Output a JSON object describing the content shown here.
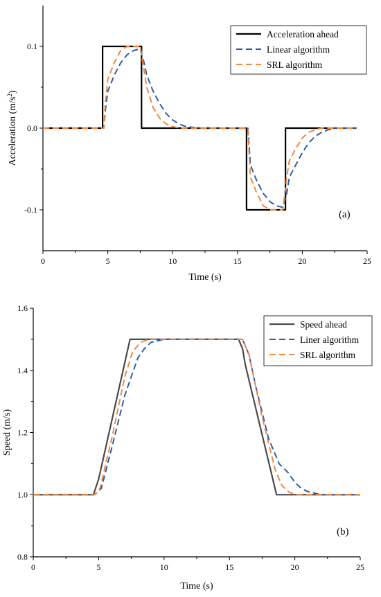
{
  "chart_data": [
    {
      "type": "line",
      "panel": "(a)",
      "xlabel": "Time (s)",
      "ylabel_text": "Acceleration (m/s",
      "ylabel_sup": "2",
      "ylabel_tail": ")",
      "xlim": [
        0,
        25
      ],
      "ylim": [
        -0.15,
        0.15
      ],
      "xticks": [
        0,
        5,
        10,
        15,
        20,
        25
      ],
      "xtick_labels": [
        "0",
        "5",
        "10",
        "15",
        "20",
        "25"
      ],
      "yticks": [
        -0.1,
        0.0,
        0.1
      ],
      "ytick_labels": [
        "-0.1",
        "0.0",
        "0.1"
      ],
      "grid": false,
      "legend_position": "top-right",
      "series": [
        {
          "name": "Acceleration ahead",
          "color": "#000000",
          "dash": "solid",
          "x": [
            0,
            4.6,
            4.6,
            7.6,
            7.6,
            15.7,
            15.7,
            18.7,
            18.7,
            24.2
          ],
          "y": [
            0,
            0,
            0.1,
            0.1,
            0,
            0,
            -0.1,
            -0.1,
            0,
            0
          ]
        },
        {
          "name": "Linear algorithm",
          "color": "#2e5da6",
          "dash": "dashed",
          "x": [
            0,
            4.7,
            4.8,
            5.0,
            5.5,
            6.0,
            6.5,
            7.0,
            7.5,
            7.8,
            8.0,
            8.5,
            9.0,
            9.5,
            10.0,
            10.5,
            11.0,
            11.5,
            12.0,
            15.8,
            15.9,
            16.0,
            16.5,
            17.0,
            17.5,
            18.0,
            18.5,
            18.8,
            19.0,
            19.5,
            20.0,
            20.5,
            21.0,
            21.5,
            22.0,
            22.5,
            24.2
          ],
          "y": [
            0,
            0,
            0.02,
            0.045,
            0.065,
            0.08,
            0.09,
            0.095,
            0.097,
            0.08,
            0.065,
            0.045,
            0.03,
            0.018,
            0.01,
            0.005,
            0.002,
            0.001,
            0,
            0,
            -0.02,
            -0.045,
            -0.065,
            -0.08,
            -0.09,
            -0.095,
            -0.097,
            -0.08,
            -0.06,
            -0.045,
            -0.03,
            -0.018,
            -0.01,
            -0.005,
            -0.002,
            0,
            0
          ]
        },
        {
          "name": "SRL algorithm",
          "color": "#f0883e",
          "dash": "dashed",
          "x": [
            0,
            4.7,
            4.8,
            5.0,
            5.5,
            6.0,
            6.5,
            7.0,
            7.5,
            7.7,
            8.0,
            8.5,
            9.0,
            9.5,
            10.0,
            10.5,
            15.8,
            15.9,
            16.0,
            16.5,
            17.0,
            17.5,
            18.0,
            18.5,
            18.8,
            19.0,
            19.5,
            20.0,
            20.5,
            21.0,
            21.5,
            24.2
          ],
          "y": [
            0,
            0,
            0.03,
            0.06,
            0.08,
            0.095,
            0.1,
            0.1,
            0.1,
            0.08,
            0.05,
            0.025,
            0.012,
            0.005,
            0.002,
            0,
            0,
            -0.03,
            -0.06,
            -0.08,
            -0.095,
            -0.1,
            -0.1,
            -0.1,
            -0.06,
            -0.04,
            -0.025,
            -0.012,
            -0.005,
            -0.002,
            0,
            0
          ]
        }
      ]
    },
    {
      "type": "line",
      "panel": "(b)",
      "xlabel": "Time (s)",
      "ylabel_text": "Speed (m/s)",
      "ylabel_sup": "",
      "ylabel_tail": "",
      "xlim": [
        0,
        25
      ],
      "ylim": [
        0.8,
        1.6
      ],
      "xticks": [
        0,
        5,
        10,
        15,
        20,
        25
      ],
      "xtick_labels": [
        "0",
        "5",
        "10",
        "15",
        "20",
        "25"
      ],
      "yticks": [
        0.8,
        1.0,
        1.2,
        1.4,
        1.6
      ],
      "ytick_labels": [
        "0.8",
        "1.0",
        "1.2",
        "1.4",
        "1.6"
      ],
      "grid": false,
      "legend_position": "top-right",
      "series": [
        {
          "name": "Speed ahead",
          "color": "#4a4a4a",
          "dash": "solid",
          "x": [
            0,
            4.6,
            5.0,
            7.4,
            15.7,
            16.0,
            16.2,
            18.6,
            25
          ],
          "y": [
            1.0,
            1.0,
            1.05,
            1.5,
            1.5,
            1.47,
            1.42,
            1.0,
            1.0
          ]
        },
        {
          "name": "Liner algorithm",
          "color": "#2e5da6",
          "dash": "dashed",
          "x": [
            0,
            4.7,
            5.2,
            6.0,
            7.0,
            7.5,
            8.0,
            8.5,
            9.0,
            9.5,
            10.0,
            10.5,
            16.0,
            16.5,
            17.0,
            18.0,
            18.8,
            19.5,
            20.0,
            20.5,
            21.0,
            21.5,
            22.0,
            25
          ],
          "y": [
            1.0,
            1.0,
            1.02,
            1.15,
            1.32,
            1.38,
            1.44,
            1.47,
            1.49,
            1.495,
            1.5,
            1.5,
            1.5,
            1.45,
            1.35,
            1.18,
            1.1,
            1.07,
            1.04,
            1.02,
            1.01,
            1.005,
            1.0,
            1.0
          ]
        },
        {
          "name": "SRL algorithm",
          "color": "#f0883e",
          "dash": "dashed",
          "x": [
            0,
            4.7,
            5.1,
            6.0,
            7.0,
            7.6,
            8.2,
            8.8,
            9.5,
            16.0,
            16.5,
            17.5,
            18.5,
            19.0,
            19.5,
            20.0,
            21.0,
            25
          ],
          "y": [
            1.0,
            1.0,
            1.02,
            1.18,
            1.38,
            1.46,
            1.49,
            1.5,
            1.5,
            1.5,
            1.45,
            1.25,
            1.08,
            1.03,
            1.01,
            1.0,
            1.0,
            1.0
          ]
        }
      ]
    }
  ]
}
